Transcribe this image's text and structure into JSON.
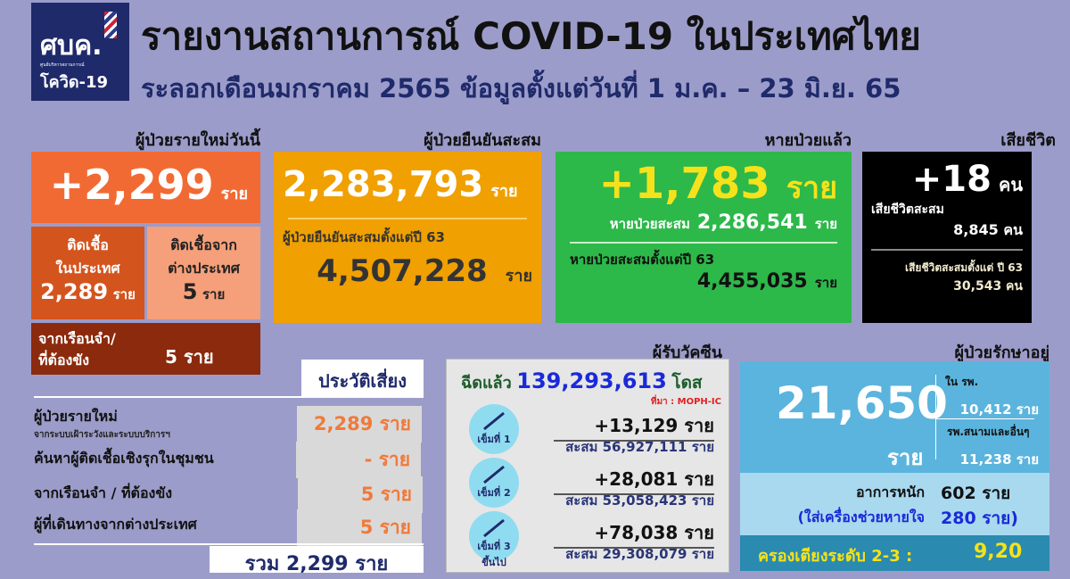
{
  "logo": {
    "text": "ศบค.",
    "sub": "ศูนย์บริหารสถานการณ์",
    "covid": "โควิด-19"
  },
  "header": {
    "title": "รายงานสถานการณ์ COVID-19 ในประเทศไทย",
    "subtitle": "ระลอกเดือนมกราคม 2565 ข้อมูลตั้งแต่วันที่ 1 ม.ค. – 23 มิ.ย. 65"
  },
  "new_cases": {
    "heading": "ผู้ป่วยรายใหม่วันนี้",
    "value": "+2,299",
    "unit": "ราย",
    "domestic_label1": "ติดเชื้อ",
    "domestic_label2": "ในประเทศ",
    "domestic_value": "2,289",
    "domestic_unit": "ราย",
    "abroad_label1": "ติดเชื้อจาก",
    "abroad_label2": "ต่างประเทศ",
    "abroad_value": "5",
    "abroad_unit": "ราย",
    "prison_label1": "จากเรือนจำ/",
    "prison_label2": "ที่ต้องขัง",
    "prison_value": "5",
    "prison_unit": "ราย"
  },
  "confirmed": {
    "heading": "ผู้ป่วยยืนยันสะสม",
    "value": "2,283,793",
    "unit": "ราย",
    "since_label": "ผู้ป่วยยืนยันสะสมตั้งแต่ปี 63",
    "since_value": "4,507,228",
    "since_unit": "ราย"
  },
  "recovered": {
    "heading": "หายป่วยแล้ว",
    "value": "+1,783",
    "unit": "ราย",
    "cum_label": "หายป่วยสะสม",
    "cum_value": "2,286,541",
    "cum_unit": "ราย",
    "since_label": "หายป่วยสะสมตั้งแต่ปี 63",
    "since_value": "4,455,035",
    "since_unit": "ราย"
  },
  "deaths": {
    "heading": "เสียชีวิต",
    "value": "+18",
    "unit": "คน",
    "cum_label": "เสียชีวิตสะสม",
    "cum_value": "8,845 คน",
    "since_label": "เสียชีวิตสะสมตั้งแต่ ปี 63",
    "since_value": "30,543 คน"
  },
  "risk": {
    "heading": "ประวัติเสี่ยง",
    "rows": [
      {
        "label": "ผู้ป่วยรายใหม่",
        "sublabel": "จากระบบเฝ้าระวังและระบบบริการฯ",
        "value": "2,289 ราย"
      },
      {
        "label": "ค้นหาผู้ติดเชื้อเชิงรุกในชุมชน",
        "value": "- ราย"
      },
      {
        "label": "จากเรือนจำ / ที่ต้องขัง",
        "value": "5 ราย"
      },
      {
        "label": "ผู้ที่เดินทางจากต่างประเทศ",
        "value": "5 ราย"
      }
    ],
    "total": "รวม 2,299 ราย"
  },
  "vaccine": {
    "heading": "ผู้รับวัคซีน",
    "label": "ฉีดแล้ว",
    "total": "139,293,613",
    "unit": "โดส",
    "source": "ที่มา : MOPH-IC",
    "doses": [
      {
        "label": "เข็มที่ 1",
        "new": "+13,129  ราย",
        "cum": "สะสม 56,927,111 ราย"
      },
      {
        "label": "เข็มที่ 2",
        "new": "+28,081  ราย",
        "cum": "สะสม 53,058,423 ราย"
      },
      {
        "label": "เข็มที่ 3 ขึ้นไป",
        "new": "+78,038  ราย",
        "cum": "สะสม 29,308,079 ราย"
      }
    ]
  },
  "treating": {
    "heading": "ผู้ป่วยรักษาอยู่",
    "value": "21,650",
    "unit": "ราย",
    "hospital_label": "ใน รพ.",
    "hospital_value": "10,412 ราย",
    "field_label": "รพ.สนามและอื่นๆ",
    "field_value": "11,238 ราย",
    "severe_label": "อาการหนัก",
    "severe_value": "602 ราย",
    "vent_label": "(ใส่เครื่องช่วยหายใจ",
    "vent_value": "280 ราย)",
    "beds_label": "ครองเตียงระดับ 2-3 :",
    "beds_value": "9,20"
  }
}
